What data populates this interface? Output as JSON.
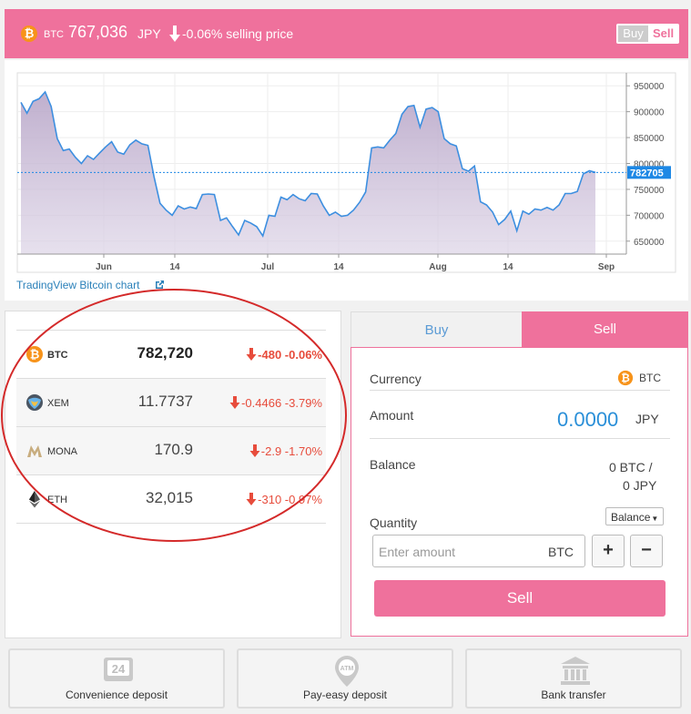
{
  "header": {
    "symbol": "BTC",
    "price": "767,036",
    "currency": "JPY",
    "change": "-0.06% selling price",
    "toggle": {
      "buy": "Buy",
      "sell": "Sell"
    }
  },
  "chart_link": "TradingView Bitcoin chart",
  "chart_data": {
    "type": "area",
    "x_ticks": [
      "Jun",
      "14",
      "Jul",
      "14",
      "Aug",
      "14",
      "Sep"
    ],
    "y_ticks": [
      "950000",
      "900000",
      "850000",
      "800000",
      "750000",
      "700000",
      "650000"
    ],
    "ylim": [
      625000,
      975000
    ],
    "current_label": "782705",
    "current_value": 782705,
    "values": [
      918000,
      897000,
      920000,
      925000,
      938000,
      910000,
      848000,
      825000,
      828000,
      812000,
      800000,
      815000,
      808000,
      820000,
      832000,
      842000,
      822000,
      818000,
      836000,
      845000,
      838000,
      835000,
      775000,
      723000,
      710000,
      700000,
      718000,
      712000,
      716000,
      713000,
      740000,
      741000,
      740000,
      690000,
      695000,
      678000,
      662000,
      690000,
      685000,
      678000,
      660000,
      700000,
      698000,
      735000,
      730000,
      740000,
      732000,
      728000,
      742000,
      741000,
      718000,
      700000,
      706000,
      698000,
      700000,
      710000,
      725000,
      745000,
      830000,
      832000,
      830000,
      845000,
      858000,
      895000,
      910000,
      912000,
      870000,
      905000,
      908000,
      900000,
      848000,
      838000,
      834000,
      790000,
      785000,
      795000,
      726000,
      720000,
      706000,
      682000,
      692000,
      708000,
      670000,
      708000,
      702000,
      712000,
      710000,
      715000,
      710000,
      720000,
      742000,
      742000,
      746000,
      780000,
      786000,
      782705
    ]
  },
  "tickers": [
    {
      "symbol": "BTC",
      "price": "782,720",
      "change": "-480 -0.06%"
    },
    {
      "symbol": "XEM",
      "price": "11.7737",
      "change": "-0.4466 -3.79%"
    },
    {
      "symbol": "MONA",
      "price": "170.9",
      "change": "-2.9 -1.70%"
    },
    {
      "symbol": "ETH",
      "price": "32,015",
      "change": "-310 -0.97%"
    }
  ],
  "trade": {
    "tabs": {
      "buy": "Buy",
      "sell": "Sell"
    },
    "currency_label": "Currency",
    "currency_value": "BTC",
    "amount_label": "Amount",
    "amount_value": "0.0000",
    "amount_unit": "JPY",
    "balance_label": "Balance",
    "balance_btc": "0 BTC /",
    "balance_jpy": "0 JPY",
    "quantity_label": "Quantity",
    "balance_dropdown": "Balance",
    "quantity_placeholder": "Enter amount",
    "quantity_unit": "BTC",
    "plus": "+",
    "minus": "−",
    "submit": "Sell"
  },
  "deposits": [
    {
      "label": "Convenience deposit",
      "icon": "convenience-store-24-icon",
      "badge": "24"
    },
    {
      "label": "Pay-easy deposit",
      "icon": "atm-icon",
      "badge": "ATM"
    },
    {
      "label": "Bank transfer",
      "icon": "bank-icon"
    }
  ],
  "colors": {
    "accent": "#ef719c",
    "btc": "#f7931a",
    "down": "#e74c3c",
    "link": "#2a80b9",
    "chart_line": "#3d8fe0"
  }
}
